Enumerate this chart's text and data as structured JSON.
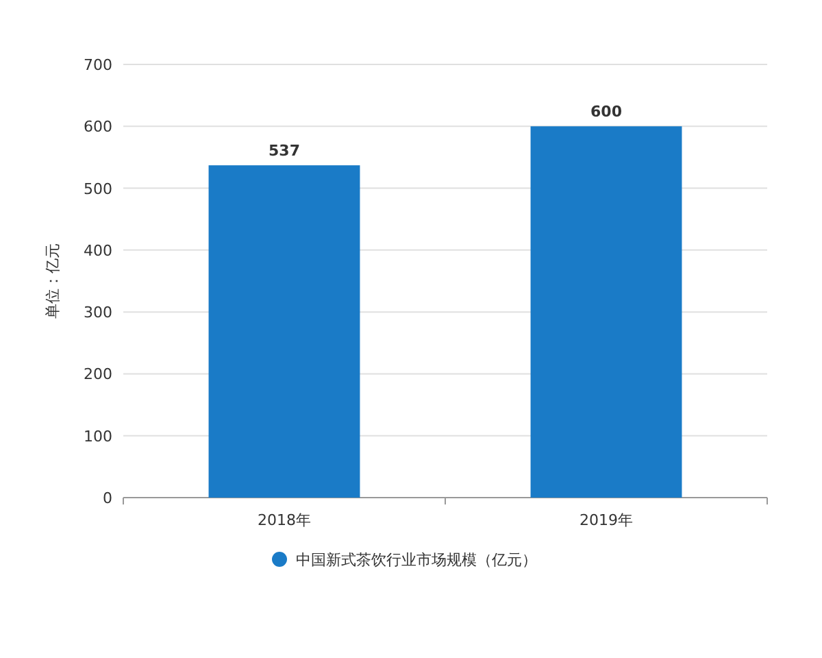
{
  "chart_data": {
    "type": "bar",
    "categories": [
      "2018年",
      "2019年"
    ],
    "series": [
      {
        "name": "中国新式茶饮行业市场规模（亿元）",
        "color": "#1a7bc7",
        "values": [
          537,
          600
        ]
      }
    ],
    "ylabel": "单位：亿元",
    "ylim": [
      0,
      700
    ],
    "yticks": [
      0,
      100,
      200,
      300,
      400,
      500,
      600,
      700
    ],
    "grid": "y",
    "data_labels": true,
    "legend": "bottom"
  }
}
